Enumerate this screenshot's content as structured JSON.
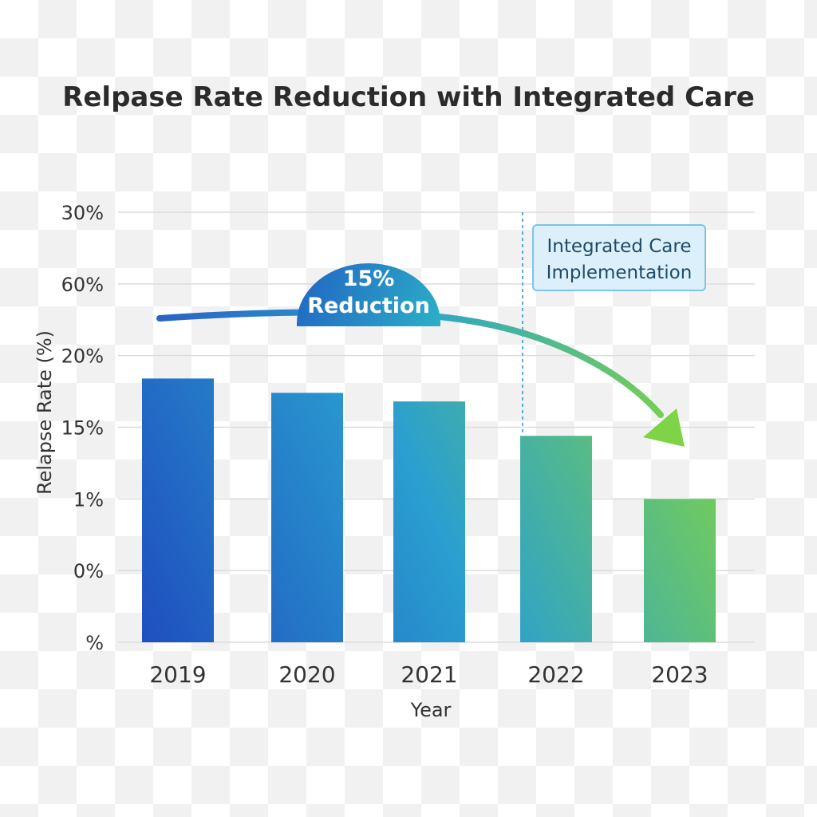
{
  "chart_data": {
    "type": "bar",
    "title": "Relpase Rate Reduction with Integrated Care",
    "xlabel": "Year",
    "ylabel": "Relapse Rate (%)",
    "categories": [
      "2019",
      "2020",
      "2021",
      "2022",
      "2023"
    ],
    "values": [
      18.4,
      17.4,
      16.8,
      14.4,
      10.0
    ],
    "y_tick_labels": [
      "30%",
      "60%",
      "20%",
      "15%",
      "1%",
      "0%",
      "%"
    ],
    "ylim": [
      0,
      30
    ],
    "grid": true,
    "legend": "none",
    "annotations": {
      "reduction_callout": {
        "line1": "15%",
        "line2": "Reduction"
      },
      "implementation_note": {
        "line1": "Integrated Care",
        "line2": "Implementation"
      }
    },
    "colors": {
      "bar_dark": "#1f4fbf",
      "bar_mid": "#2a9fd0",
      "bar_light": "#7ed348",
      "note_fill": "#dcf0fb",
      "note_border": "#7ec3e8",
      "marker_line": "#5aaed6"
    }
  }
}
